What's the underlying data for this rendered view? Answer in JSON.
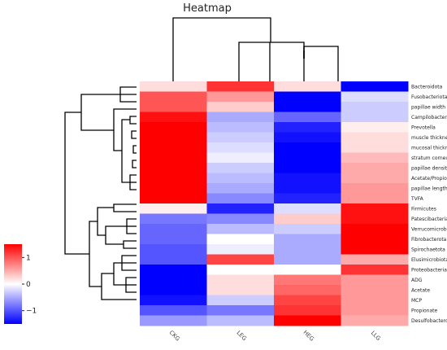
{
  "chart_data": {
    "type": "heatmap",
    "title": "Heatmap",
    "columns": [
      "CKG",
      "LEG",
      "HEG",
      "LLG"
    ],
    "rows": [
      "Bacteroidota",
      "Fusobacteriota",
      "papillae width",
      "Campilobacterota",
      "Prevotella",
      "muscle thickness",
      "mucosal thickness",
      "stratum corneum",
      "papillae density",
      "Acetate/Propionate",
      "papillae length",
      "TVFA",
      "Firmicutes",
      "Patescibacteria",
      "Verrucomicrobiota",
      "Fibrobacterota",
      "Spirochaetota",
      "Elusimicrobiota",
      "Proteobacteria",
      "ADG",
      "Acetate",
      "MCP",
      "Propionate",
      "Desulfobacterota"
    ],
    "values": [
      [
        0.2,
        1.2,
        0.2,
        -1.6
      ],
      [
        1.0,
        0.6,
        -1.6,
        -0.2
      ],
      [
        1.0,
        0.3,
        -1.6,
        -0.3
      ],
      [
        1.4,
        -0.5,
        -0.9,
        -0.3
      ],
      [
        1.5,
        -0.4,
        -1.3,
        0.1
      ],
      [
        1.5,
        -0.3,
        -1.4,
        0.2
      ],
      [
        1.5,
        -0.2,
        -1.5,
        0.2
      ],
      [
        1.5,
        -0.1,
        -1.5,
        0.4
      ],
      [
        1.5,
        -0.3,
        -1.5,
        0.5
      ],
      [
        1.5,
        -0.4,
        -1.4,
        0.5
      ],
      [
        1.5,
        -0.5,
        -1.4,
        0.6
      ],
      [
        1.5,
        -0.7,
        -1.3,
        0.6
      ],
      [
        0.1,
        -1.3,
        -0.2,
        1.4
      ],
      [
        -0.8,
        -0.7,
        0.3,
        1.4
      ],
      [
        -0.9,
        -0.4,
        -0.3,
        1.5
      ],
      [
        -0.9,
        0.0,
        -0.5,
        1.5
      ],
      [
        -1.0,
        -0.1,
        -0.5,
        1.5
      ],
      [
        -1.0,
        1.1,
        -0.5,
        0.5
      ],
      [
        -1.6,
        0.0,
        0.0,
        1.2
      ],
      [
        -1.6,
        0.2,
        0.8,
        0.6
      ],
      [
        -1.6,
        0.2,
        0.9,
        0.6
      ],
      [
        -1.4,
        -0.3,
        1.1,
        0.6
      ],
      [
        -1.0,
        -0.8,
        1.2,
        0.6
      ],
      [
        -0.6,
        -0.4,
        1.5,
        0.5
      ]
    ],
    "colorbar": {
      "ticks": [
        -1,
        0,
        1
      ],
      "range": [
        -1.5,
        1.5
      ],
      "colors": {
        "low": "#0000ff",
        "mid": "#ffffff",
        "high": "#ff0000"
      }
    },
    "dendrogram": {
      "columns": "((CKG),((LEG),(HEG,LLG)))",
      "rows": "clustered"
    }
  }
}
